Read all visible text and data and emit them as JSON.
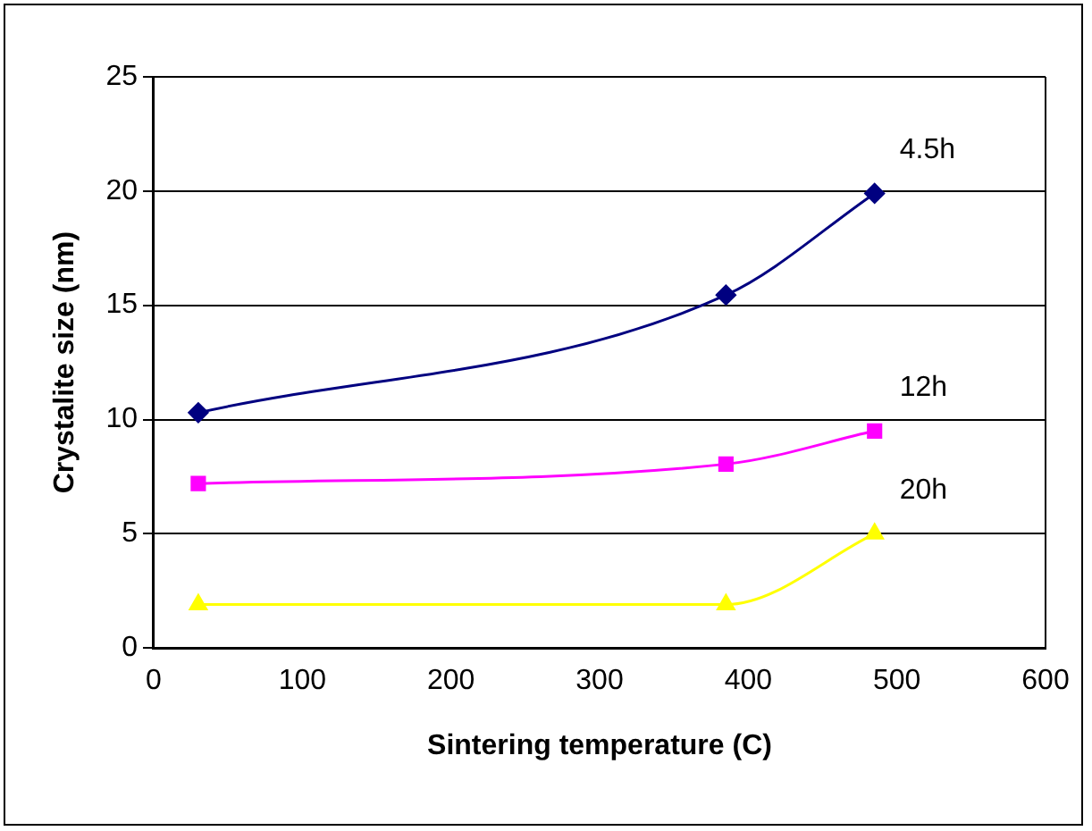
{
  "chart_data": {
    "type": "line",
    "xlabel": "Sintering temperature (C)",
    "ylabel": "Crystalite size (nm)",
    "x": [
      30,
      385,
      485
    ],
    "series": [
      {
        "name": "4.5h",
        "color": "#000080",
        "values": [
          10.3,
          15.45,
          19.9
        ],
        "marker": "diamond"
      },
      {
        "name": "12h",
        "color": "#ff00ff",
        "values": [
          7.2,
          8.05,
          9.5
        ],
        "marker": "square"
      },
      {
        "name": "20h",
        "color": "#ffff00",
        "values": [
          1.9,
          1.9,
          5.0
        ],
        "marker": "triangle"
      }
    ],
    "xlim": [
      0,
      600
    ],
    "xticks": [
      0,
      100,
      200,
      300,
      400,
      500,
      600
    ],
    "ylim": [
      0,
      25
    ],
    "yticks": [
      0,
      5,
      10,
      15,
      20,
      25
    ],
    "grid": "y",
    "legend": false
  }
}
